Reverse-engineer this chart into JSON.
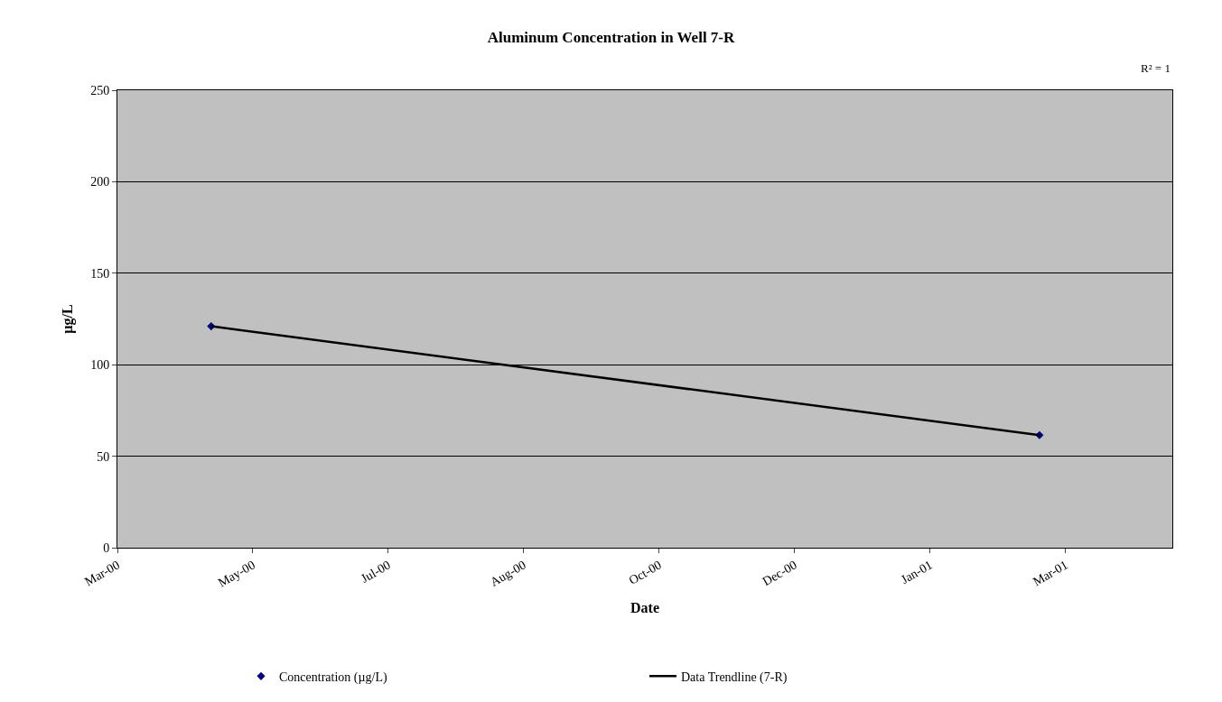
{
  "chart_data": {
    "type": "scatter",
    "title": "Aluminum Concentration in Well 7-R",
    "xlabel": "Date",
    "ylabel": "µg/L",
    "annotations": [
      "R² = 1"
    ],
    "x": [
      "2000-04-25",
      "2001-03-09"
    ],
    "series": [
      {
        "name": "Concentration (µg/L)",
        "marker": "diamond",
        "color": "#000080",
        "values": [
          121,
          61.5
        ]
      },
      {
        "name": "Data Trendline (7-R)",
        "type": "line",
        "marker": "none",
        "color": "#000000",
        "values": [
          121,
          61.5
        ]
      }
    ],
    "xlim": [
      "2000-03-20",
      "2001-04-29"
    ],
    "xticks": [
      {
        "value": "2000-03-20",
        "label": "Mar-00"
      },
      {
        "value": "2000-05-11",
        "label": "May-00"
      },
      {
        "value": "2000-07-02",
        "label": "Jul-00"
      },
      {
        "value": "2000-08-23",
        "label": "Aug-00"
      },
      {
        "value": "2000-10-14",
        "label": "Oct-00"
      },
      {
        "value": "2000-12-05",
        "label": "Dec-00"
      },
      {
        "value": "2001-01-26",
        "label": "Jan-01"
      },
      {
        "value": "2001-03-19",
        "label": "Mar-01"
      }
    ],
    "ylim": [
      0,
      250
    ],
    "yticks": [
      0,
      50,
      100,
      150,
      200,
      250
    ],
    "grid": "y",
    "legend": "bottom"
  }
}
